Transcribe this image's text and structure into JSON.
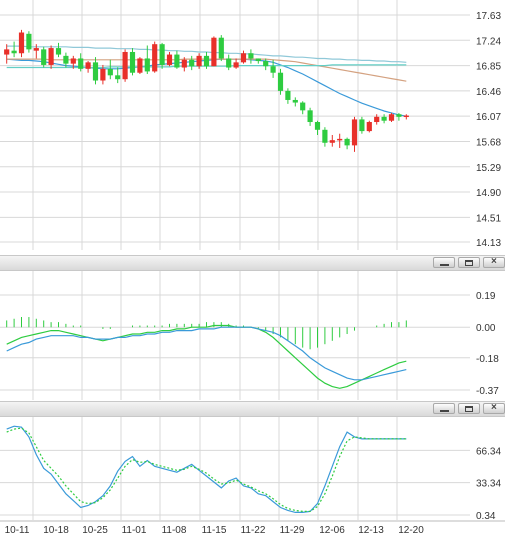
{
  "chart_data": [
    {
      "type": "candlestick",
      "pane": "price",
      "x_labels": [
        "10-11",
        "10-18",
        "10-25",
        "11-01",
        "11-08",
        "11-15",
        "11-22",
        "11-29",
        "12-06",
        "12-13",
        "12-20"
      ],
      "y_ticks": [
        "17.63",
        "17.24",
        "16.85",
        "16.46",
        "16.07",
        "15.68",
        "15.29",
        "14.90",
        "14.51",
        "14.13"
      ],
      "ylim": [
        14.13,
        17.63
      ],
      "ohlc": [
        [
          17.02,
          17.18,
          16.88,
          17.1
        ],
        [
          17.08,
          17.22,
          16.98,
          17.04
        ],
        [
          17.04,
          17.4,
          16.98,
          17.36
        ],
        [
          17.34,
          17.38,
          17.05,
          17.1
        ],
        [
          17.08,
          17.18,
          16.96,
          17.12
        ],
        [
          17.1,
          17.14,
          16.82,
          16.86
        ],
        [
          16.86,
          17.16,
          16.8,
          17.12
        ],
        [
          17.12,
          17.2,
          16.98,
          17.02
        ],
        [
          17.0,
          17.05,
          16.82,
          16.88
        ],
        [
          16.88,
          17.0,
          16.8,
          16.96
        ],
        [
          16.96,
          17.04,
          16.76,
          16.8
        ],
        [
          16.8,
          16.92,
          16.74,
          16.9
        ],
        [
          16.9,
          16.98,
          16.56,
          16.62
        ],
        [
          16.62,
          16.86,
          16.56,
          16.8
        ],
        [
          16.8,
          16.94,
          16.64,
          16.7
        ],
        [
          16.7,
          16.82,
          16.58,
          16.64
        ],
        [
          16.64,
          17.1,
          16.6,
          17.06
        ],
        [
          17.06,
          17.12,
          16.7,
          16.74
        ],
        [
          16.74,
          16.98,
          16.72,
          16.96
        ],
        [
          16.96,
          17.16,
          16.72,
          16.76
        ],
        [
          16.76,
          17.22,
          16.74,
          17.18
        ],
        [
          17.18,
          17.2,
          16.8,
          16.86
        ],
        [
          16.86,
          17.06,
          16.84,
          17.02
        ],
        [
          17.02,
          17.08,
          16.8,
          16.82
        ],
        [
          16.82,
          16.98,
          16.76,
          16.94
        ],
        [
          16.94,
          17.0,
          16.78,
          16.84
        ],
        [
          16.84,
          17.04,
          16.8,
          17.0
        ],
        [
          17.0,
          17.06,
          16.8,
          16.84
        ],
        [
          16.84,
          17.3,
          16.84,
          17.28
        ],
        [
          17.28,
          17.32,
          16.92,
          16.96
        ],
        [
          16.96,
          17.02,
          16.78,
          16.82
        ],
        [
          16.82,
          16.96,
          16.8,
          16.9
        ],
        [
          16.9,
          17.08,
          16.88,
          17.04
        ],
        [
          17.04,
          17.1,
          16.88,
          16.96
        ],
        [
          16.96,
          16.96,
          16.88,
          16.92
        ],
        [
          16.92,
          16.96,
          16.78,
          16.84
        ],
        [
          16.84,
          16.94,
          16.66,
          16.74
        ],
        [
          16.74,
          16.8,
          16.4,
          16.46
        ],
        [
          16.46,
          16.5,
          16.26,
          16.32
        ],
        [
          16.32,
          16.36,
          16.22,
          16.28
        ],
        [
          16.28,
          16.3,
          16.1,
          16.16
        ],
        [
          16.16,
          16.2,
          15.92,
          15.98
        ],
        [
          15.98,
          16.0,
          15.78,
          15.86
        ],
        [
          15.86,
          15.9,
          15.6,
          15.66
        ],
        [
          15.66,
          15.78,
          15.6,
          15.7
        ],
        [
          15.7,
          15.8,
          15.58,
          15.72
        ],
        [
          15.72,
          15.74,
          15.56,
          15.62
        ],
        [
          15.62,
          16.06,
          15.52,
          16.02
        ],
        [
          16.02,
          16.06,
          15.8,
          15.84
        ],
        [
          15.84,
          16.0,
          15.82,
          15.98
        ],
        [
          15.98,
          16.1,
          15.94,
          16.06
        ],
        [
          16.06,
          16.1,
          15.96,
          16.0
        ],
        [
          16.0,
          16.12,
          15.98,
          16.1
        ],
        [
          16.1,
          16.12,
          16.0,
          16.06
        ],
        [
          16.06,
          16.1,
          16.02,
          16.08
        ]
      ],
      "series": [
        {
          "color": "#3a9ad9",
          "values": [
            16.95,
            16.94,
            16.93,
            16.93,
            16.92,
            16.91,
            16.89,
            16.87,
            16.85,
            16.84,
            16.83,
            16.82,
            16.81,
            16.8,
            16.8,
            16.8,
            16.81,
            16.82,
            16.83,
            16.84,
            16.86,
            16.87,
            16.88,
            16.89,
            16.9,
            16.91,
            16.92,
            16.93,
            16.94,
            16.95,
            16.95,
            16.95,
            16.95,
            16.94,
            16.93,
            16.92,
            16.9,
            16.86,
            16.82,
            16.77,
            16.72,
            16.66,
            16.6,
            16.54,
            16.48,
            16.42,
            16.37,
            16.32,
            16.27,
            16.23,
            16.19,
            16.15,
            16.12,
            16.09,
            16.07
          ]
        },
        {
          "color": "#d4a281",
          "values": [
            16.95,
            16.95,
            16.95,
            16.95,
            16.95,
            16.95,
            16.94,
            16.94,
            16.94,
            16.94,
            16.94,
            16.94,
            16.94,
            16.94,
            16.94,
            16.94,
            16.94,
            16.94,
            16.94,
            16.94,
            16.94,
            16.94,
            16.94,
            16.94,
            16.95,
            16.95,
            16.95,
            16.95,
            16.95,
            16.95,
            16.95,
            16.95,
            16.95,
            16.95,
            16.95,
            16.95,
            16.94,
            16.93,
            16.92,
            16.91,
            16.89,
            16.87,
            16.85,
            16.83,
            16.81,
            16.79,
            16.77,
            16.75,
            16.73,
            16.71,
            16.69,
            16.67,
            16.65,
            16.63,
            16.61
          ]
        },
        {
          "color": "#8fc8d8",
          "values": [
            17.15,
            17.15,
            17.15,
            17.14,
            17.14,
            17.14,
            17.14,
            17.14,
            17.14,
            17.13,
            17.13,
            17.13,
            17.12,
            17.12,
            17.12,
            17.11,
            17.11,
            17.11,
            17.1,
            17.1,
            17.09,
            17.09,
            17.08,
            17.08,
            17.07,
            17.07,
            17.06,
            17.06,
            17.05,
            17.05,
            17.04,
            17.04,
            17.03,
            17.03,
            17.02,
            17.01,
            17.0,
            17.0,
            16.99,
            16.98,
            16.98,
            16.97,
            16.96,
            16.96,
            16.95,
            16.95,
            16.94,
            16.94,
            16.93,
            16.93,
            16.92,
            16.92,
            16.91,
            16.91,
            16.9
          ]
        },
        {
          "color": "#63cfc6",
          "values": [
            16.82,
            16.82,
            16.82,
            16.82,
            16.82,
            16.82,
            16.82,
            16.82,
            16.82,
            16.82,
            16.82,
            16.82,
            16.82,
            16.82,
            16.83,
            16.83,
            16.83,
            16.83,
            16.83,
            16.83,
            16.83,
            16.83,
            16.83,
            16.84,
            16.84,
            16.84,
            16.84,
            16.84,
            16.84,
            16.84,
            16.84,
            16.85,
            16.85,
            16.85,
            16.85,
            16.85,
            16.85,
            16.85,
            16.85,
            16.85,
            16.85,
            16.85,
            16.85,
            16.85,
            16.86,
            16.86,
            16.86,
            16.86,
            16.86,
            16.86,
            16.86,
            16.86,
            16.86,
            16.86,
            16.86
          ]
        }
      ],
      "colors": {
        "up": "#e8302a",
        "down": "#2ecc40"
      }
    },
    {
      "type": "macd",
      "pane": "macd",
      "y_ticks": [
        "0.19",
        "0.00",
        "-0.18",
        "-0.37"
      ],
      "ylim": [
        -0.37,
        0.19
      ],
      "histogram": [
        0.04,
        0.05,
        0.06,
        0.06,
        0.05,
        0.04,
        0.03,
        0.03,
        0.02,
        0.01,
        0.01,
        0.0,
        0.0,
        -0.01,
        -0.01,
        0.0,
        0.0,
        0.01,
        0.01,
        0.01,
        0.01,
        0.01,
        0.02,
        0.02,
        0.02,
        0.02,
        0.02,
        0.03,
        0.03,
        0.03,
        0.02,
        0.01,
        0.01,
        0.0,
        -0.01,
        -0.02,
        -0.04,
        -0.06,
        -0.08,
        -0.1,
        -0.12,
        -0.13,
        -0.12,
        -0.1,
        -0.08,
        -0.06,
        -0.04,
        -0.02,
        0.0,
        0.0,
        0.01,
        0.02,
        0.03,
        0.03,
        0.04
      ],
      "dif": [
        -0.1,
        -0.08,
        -0.06,
        -0.05,
        -0.04,
        -0.03,
        -0.02,
        -0.02,
        -0.03,
        -0.04,
        -0.05,
        -0.06,
        -0.07,
        -0.08,
        -0.07,
        -0.06,
        -0.05,
        -0.04,
        -0.04,
        -0.03,
        -0.03,
        -0.02,
        -0.02,
        -0.01,
        -0.01,
        0.0,
        0.0,
        0.0,
        0.01,
        0.01,
        0.01,
        0.0,
        0.0,
        0.0,
        -0.01,
        -0.03,
        -0.06,
        -0.1,
        -0.14,
        -0.18,
        -0.22,
        -0.26,
        -0.3,
        -0.33,
        -0.35,
        -0.36,
        -0.35,
        -0.33,
        -0.31,
        -0.29,
        -0.27,
        -0.25,
        -0.23,
        -0.21,
        -0.2
      ],
      "dea": [
        -0.14,
        -0.12,
        -0.1,
        -0.09,
        -0.07,
        -0.06,
        -0.05,
        -0.05,
        -0.05,
        -0.05,
        -0.06,
        -0.06,
        -0.07,
        -0.07,
        -0.07,
        -0.06,
        -0.06,
        -0.05,
        -0.05,
        -0.04,
        -0.04,
        -0.03,
        -0.03,
        -0.02,
        -0.02,
        -0.02,
        -0.01,
        -0.01,
        -0.01,
        0.0,
        0.0,
        0.0,
        0.0,
        0.0,
        -0.01,
        -0.02,
        -0.03,
        -0.05,
        -0.08,
        -0.11,
        -0.14,
        -0.18,
        -0.21,
        -0.24,
        -0.26,
        -0.28,
        -0.3,
        -0.31,
        -0.31,
        -0.3,
        -0.29,
        -0.28,
        -0.27,
        -0.26,
        -0.25
      ],
      "colors": {
        "dif": "#2ecc40",
        "dea": "#3a9ad9",
        "hist": "#2ecc40"
      }
    },
    {
      "type": "line",
      "pane": "oscillator",
      "y_ticks": [
        "66.34",
        "33.34",
        "0.34"
      ],
      "ylim": [
        0.34,
        99.34
      ],
      "series": [
        {
          "color": "#3a9ad9",
          "style": "solid",
          "values": [
            88,
            91,
            90,
            80,
            62,
            48,
            42,
            32,
            22,
            15,
            8,
            10,
            14,
            20,
            30,
            45,
            55,
            60,
            50,
            56,
            50,
            48,
            46,
            44,
            48,
            52,
            46,
            40,
            34,
            28,
            35,
            38,
            30,
            28,
            22,
            20,
            14,
            8,
            5,
            3,
            3,
            4,
            12,
            30,
            50,
            70,
            85,
            80,
            78,
            78,
            78,
            78,
            78,
            78,
            78
          ]
        },
        {
          "color": "#2ecc40",
          "style": "dotted",
          "values": [
            85,
            88,
            89,
            84,
            70,
            56,
            48,
            40,
            30,
            22,
            14,
            12,
            13,
            18,
            26,
            38,
            50,
            57,
            54,
            55,
            52,
            50,
            48,
            46,
            47,
            50,
            47,
            43,
            37,
            32,
            33,
            36,
            32,
            29,
            25,
            22,
            17,
            11,
            7,
            5,
            4,
            4,
            9,
            22,
            40,
            60,
            76,
            80,
            79,
            78,
            78,
            78,
            78,
            78,
            78
          ]
        }
      ]
    }
  ]
}
